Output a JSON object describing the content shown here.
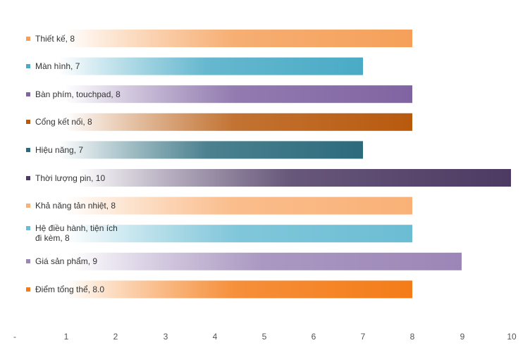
{
  "chart_data": {
    "type": "bar",
    "orientation": "horizontal",
    "title": "",
    "xlabel": "",
    "ylabel": "",
    "xlim": [
      0,
      10
    ],
    "x_ticks": [
      "-",
      "1",
      "2",
      "3",
      "4",
      "5",
      "6",
      "7",
      "8",
      "9",
      "10"
    ],
    "grid": false,
    "legend": "none",
    "bars": [
      {
        "label": "Thiết kế,  8",
        "value": 8,
        "color": "#f5a05a"
      },
      {
        "label": "Màn hình,  7",
        "value": 7,
        "color": "#4aabc6"
      },
      {
        "label": "Bàn phím, touchpad,  8",
        "value": 8,
        "color": "#8064a2"
      },
      {
        "label": "Cổng kết nối,  8",
        "value": 8,
        "color": "#b85a0e"
      },
      {
        "label": "Hiệu năng,  7",
        "value": 7,
        "color": "#2c6b7c"
      },
      {
        "label": "Thời lượng pin,  10",
        "value": 10,
        "color": "#4d3a63"
      },
      {
        "label": "Khả năng tản nhiệt,  8",
        "value": 8,
        "color": "#f9b177"
      },
      {
        "label": "Hệ điều hành, tiện ích\nđi kèm,  8",
        "value": 8,
        "color": "#6bbdd4"
      },
      {
        "label": "Giá sản phẩm,  9",
        "value": 9,
        "color": "#9c86b7"
      },
      {
        "label": "Điểm tổng thể,  8.0",
        "value": 8.0,
        "color": "#f47c18"
      }
    ]
  }
}
